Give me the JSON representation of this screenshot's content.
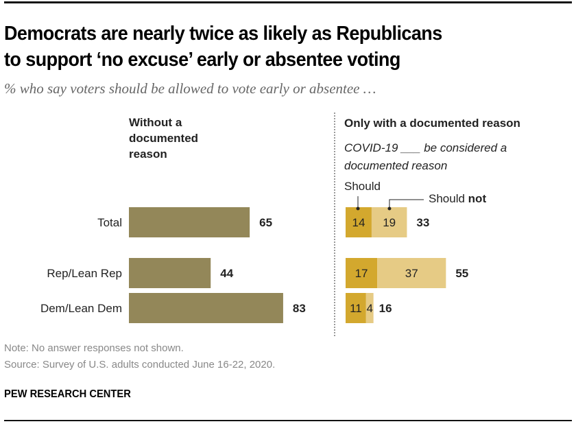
{
  "header": {
    "title_line1": "Democrats are nearly twice as likely as Republicans",
    "title_line2": "to support ‘no excuse’ early or absentee voting",
    "subtitle": "% who say voters should be allowed to vote early or absentee …"
  },
  "panels": {
    "left_header": "Without a documented reason",
    "right_header": "Only with a documented reason",
    "right_subheader": "COVID-19 ___ be considered a documented reason"
  },
  "legend": {
    "should": "Should",
    "should_not_prefix": "Should",
    "should_not_bold": "not"
  },
  "colors": {
    "without_reason": "#938759",
    "should": "#d3a82e",
    "should_not": "#e6cb85",
    "divider": "#999999"
  },
  "chart_data": [
    {
      "type": "bar",
      "orientation": "horizontal",
      "title": "Without a documented reason",
      "categories": [
        "Total",
        "Rep/Lean Rep",
        "Dem/Lean Dem"
      ],
      "values": [
        65,
        44,
        83
      ],
      "value_labels": [
        "65",
        "44",
        "83"
      ],
      "xlim": [
        0,
        100
      ],
      "grid": false
    },
    {
      "type": "bar",
      "orientation": "horizontal",
      "stacked": true,
      "title": "Only with a documented reason",
      "subtitle": "COVID-19 ___ be considered a documented reason",
      "categories": [
        "Total",
        "Rep/Lean Rep",
        "Dem/Lean Dem"
      ],
      "series": [
        {
          "name": "Should",
          "values": [
            14,
            17,
            11
          ]
        },
        {
          "name": "Should not",
          "values": [
            19,
            37,
            4
          ]
        }
      ],
      "totals": [
        33,
        55,
        16
      ],
      "xlim": [
        0,
        100
      ],
      "legend": "top-left, callout labels",
      "grid": false
    }
  ],
  "footer": {
    "note": "Note: No answer responses not shown.",
    "source": "Source: Survey of U.S. adults conducted June 16-22, 2020.",
    "brand": "PEW RESEARCH CENTER"
  }
}
